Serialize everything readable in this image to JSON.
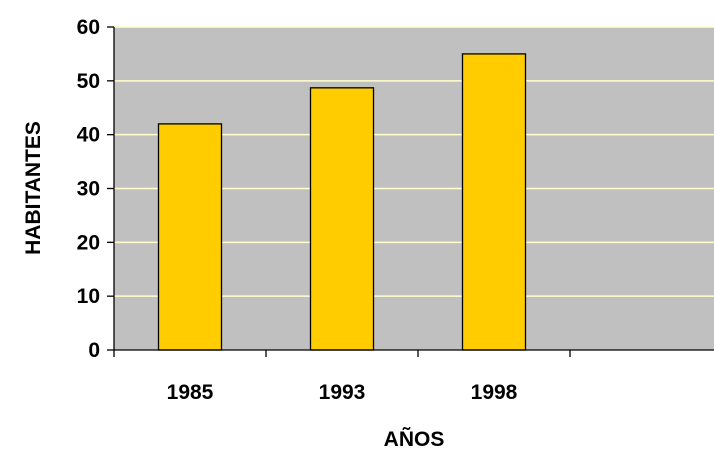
{
  "chart_data": {
    "type": "bar",
    "title": "",
    "xlabel": "AÑOS",
    "ylabel": "HABITANTES",
    "categories": [
      "1985",
      "1993",
      "1998",
      ""
    ],
    "values": [
      42,
      48.7,
      55,
      null
    ],
    "ylim": [
      0,
      60
    ],
    "yticks": [
      "0",
      "10",
      "20",
      "30",
      "40",
      "50",
      "60"
    ],
    "grid": true,
    "legend": "none",
    "colors": {
      "bar": "#ffcc00",
      "bar_stroke": "#000000",
      "plot_background": "#c0c0c0",
      "gridline": "#ffffcc"
    }
  }
}
